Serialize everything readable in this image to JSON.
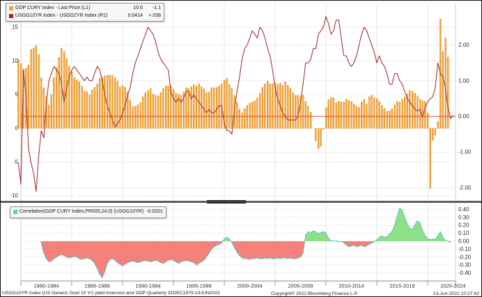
{
  "legend_top": {
    "series1": {
      "swatch_color": "#F2A138",
      "label": "GDP CURY Index - Last Price (L1)",
      "value": "10.6",
      "change": "-1.1"
    },
    "series2": {
      "swatch_color": "#9E2B33",
      "label": "USGG10YR Index - USGG2YR Index (R1)",
      "value": "0.0414",
      "change": "+.038"
    }
  },
  "legend_bottom": {
    "swatch_color": "#3FD9D4",
    "label": "Correlation(GDP CURY Index,PR005,24,0) (USGG10YR)",
    "value": "-0.0201"
  },
  "footer": {
    "left": "USGG10YR Index (US Generic Govt 10 Yr) yield inversion and GDP   Quarterly 31DEC1979-13JUN2022",
    "copyright": "Copyright© 2022 Bloomberg Finance L.P.",
    "timestamp": "13-Jun-2022 10:27:42"
  },
  "x_axis": {
    "labels": [
      "1980-1984",
      "1985-1989",
      "1990-1994",
      "1995-1999",
      "2000-2004",
      "2005-2009",
      "2010-2014",
      "2015-2019",
      "2020-2024"
    ]
  },
  "chart_data": [
    {
      "type": "bar",
      "title": "GDP (bars, L1) vs 10yr-2yr Treasury spread (line, R1)",
      "x_start": 1979.75,
      "x_step": 0.25,
      "left_axis": {
        "label": "L1",
        "ticks": [
          15,
          10,
          5,
          0,
          -5,
          -10
        ],
        "range": [
          -10.6,
          18.5
        ]
      },
      "right_axis": {
        "label": "R1",
        "ticks": [
          2,
          1,
          0,
          -1,
          -2
        ],
        "range": [
          -2.33,
          2.81
        ],
        "zero_line_color": "#D24A2E"
      },
      "grid_years": [
        1985,
        1990,
        1995,
        2000,
        2005,
        2010,
        2015,
        2020
      ],
      "bar_series": {
        "name": "GDP CURY Index - Last Price",
        "axis": "L1",
        "color": "#F4A437",
        "edge": "#DD8D1E",
        "values": [
          10.2,
          9.6,
          8.8,
          8.9,
          9.4,
          11.7,
          11.9,
          12.3,
          11.0,
          7.5,
          6.0,
          4.8,
          3.5,
          5.0,
          7.5,
          9.0,
          10.5,
          11.9,
          11.4,
          10.3,
          9.2,
          8.4,
          7.5,
          7.2,
          6.9,
          6.3,
          5.5,
          5.4,
          5.0,
          5.7,
          6.1,
          6.6,
          7.4,
          7.6,
          7.8,
          7.9,
          7.9,
          7.9,
          7.5,
          7.0,
          6.2,
          6.4,
          6.1,
          5.4,
          4.2,
          3.2,
          3.3,
          3.5,
          3.8,
          4.7,
          5.3,
          5.6,
          5.9,
          5.1,
          4.9,
          4.8,
          5.3,
          5.9,
          6.3,
          6.3,
          6.4,
          5.8,
          5.2,
          5.1,
          4.9,
          5.4,
          6.0,
          5.9,
          6.2,
          6.5,
          6.3,
          6.6,
          6.2,
          5.8,
          5.3,
          5.4,
          6.0,
          6.0,
          6.1,
          6.3,
          6.6,
          7.1,
          7.4,
          6.5,
          5.9,
          4.9,
          3.8,
          2.8,
          2.3,
          2.9,
          3.4,
          3.7,
          3.9,
          4.1,
          4.5,
          5.2,
          6.1,
          6.6,
          7.0,
          6.6,
          6.6,
          6.8,
          6.5,
          6.7,
          6.4,
          6.9,
          6.4,
          5.9,
          5.3,
          4.9,
          4.9,
          4.7,
          4.9,
          4.0,
          3.3,
          2.4,
          0.0,
          -1.9,
          -3.0,
          -2.7,
          -0.2,
          3.1,
          4.2,
          4.6,
          4.5,
          3.8,
          4.0,
          3.9,
          3.9,
          4.3,
          4.1,
          4.0,
          3.6,
          3.3,
          3.1,
          3.9,
          4.3,
          3.6,
          4.7,
          4.9,
          4.5,
          4.4,
          4.0,
          3.4,
          2.9,
          2.5,
          2.6,
          2.9,
          3.5,
          4.0,
          3.9,
          4.3,
          4.7,
          5.1,
          5.6,
          5.5,
          5.2,
          4.8,
          4.3,
          4.1,
          4.0,
          2.3,
          -8.9,
          -1.8,
          -1.0,
          1.0,
          16.2,
          11.4,
          13.4,
          10.6
        ]
      },
      "line_series": {
        "name": "USGG10YR Index - USGG2YR Index",
        "axis": "R1",
        "color": "#A5323B",
        "values": [
          -1.3,
          -1.9,
          1.3,
          0.6,
          -0.9,
          -1.3,
          -1.6,
          -2.1,
          -1.1,
          -0.4,
          -0.6,
          0.4,
          1.0,
          1.2,
          1.4,
          1.3,
          1.2,
          0.9,
          0.4,
          0.8,
          1.1,
          1.3,
          1.4,
          1.3,
          1.2,
          1.1,
          1.0,
          1.1,
          1.0,
          1.0,
          1.2,
          1.4,
          1.3,
          1.0,
          0.6,
          0.3,
          0.1,
          -0.1,
          -0.3,
          -0.2,
          -0.1,
          0.1,
          0.3,
          0.6,
          0.8,
          1.2,
          1.5,
          1.7,
          1.9,
          2.1,
          2.3,
          2.5,
          2.4,
          2.3,
          2.1,
          1.8,
          1.6,
          1.5,
          1.4,
          1.3,
          0.7,
          0.5,
          0.4,
          0.5,
          0.4,
          0.5,
          0.7,
          0.7,
          0.5,
          0.6,
          0.5,
          0.4,
          0.3,
          0.2,
          0.1,
          0.2,
          0.1,
          0.1,
          0.2,
          0.3,
          0.3,
          -0.2,
          -0.4,
          -0.4,
          -0.5,
          0.2,
          0.7,
          1.1,
          1.6,
          1.9,
          2.0,
          2.2,
          2.4,
          2.3,
          2.2,
          2.5,
          2.4,
          2.2,
          1.9,
          1.7,
          1.3,
          0.8,
          0.5,
          0.3,
          0.1,
          0.0,
          -0.1,
          -0.1,
          -0.1,
          -0.1,
          0.0,
          0.4,
          0.9,
          1.5,
          1.5,
          1.6,
          1.9,
          1.9,
          2.3,
          2.4,
          2.5,
          2.8,
          2.6,
          2.3,
          2.4,
          2.7,
          2.7,
          2.2,
          1.7,
          1.7,
          1.5,
          1.4,
          1.5,
          1.7,
          2.0,
          2.3,
          2.5,
          2.4,
          2.2,
          2.0,
          1.8,
          1.5,
          1.7,
          1.5,
          1.4,
          1.2,
          0.9,
          0.9,
          1.2,
          1.2,
          1.0,
          0.9,
          0.7,
          0.5,
          0.4,
          0.3,
          0.2,
          0.15,
          0.2,
          -0.02,
          0.25,
          0.4,
          0.5,
          0.55,
          0.8,
          1.5,
          1.2,
          1.1,
          0.8,
          0.25,
          -0.06,
          0.04
        ]
      }
    },
    {
      "type": "area",
      "title": "Rolling correlation of GDP and 10yr yield",
      "x_start": 1982.0,
      "x_step": 0.25,
      "right_axis": {
        "ticks": [
          0.4,
          0.3,
          0.2,
          0.1,
          0,
          -0.1,
          -0.2,
          -0.3,
          -0.4
        ],
        "range": [
          -0.5,
          0.46
        ]
      },
      "grid_years": [
        1985,
        1990,
        1995,
        2000,
        2005,
        2010,
        2015,
        2020
      ],
      "series": {
        "name": "Correlation(GDP CURY Index,PR005,24,0) (USGG10YR)",
        "line_color": "#53BFC0",
        "pos_fill": "#8EE088",
        "neg_fill": "#F4827B",
        "values": [
          -0.02,
          -0.15,
          -0.22,
          -0.26,
          -0.25,
          -0.22,
          -0.2,
          -0.18,
          -0.17,
          -0.18,
          -0.2,
          -0.21,
          -0.2,
          -0.19,
          -0.2,
          -0.22,
          -0.23,
          -0.22,
          -0.21,
          -0.22,
          -0.24,
          -0.28,
          -0.34,
          -0.42,
          -0.46,
          -0.38,
          -0.28,
          -0.23,
          -0.22,
          -0.24,
          -0.27,
          -0.29,
          -0.31,
          -0.29,
          -0.27,
          -0.26,
          -0.25,
          -0.26,
          -0.27,
          -0.26,
          -0.25,
          -0.24,
          -0.25,
          -0.26,
          -0.25,
          -0.24,
          -0.25,
          -0.27,
          -0.28,
          -0.26,
          -0.24,
          -0.23,
          -0.24,
          -0.26,
          -0.28,
          -0.26,
          -0.25,
          -0.24,
          -0.25,
          -0.26,
          -0.27,
          -0.3,
          -0.28,
          -0.26,
          -0.24,
          -0.2,
          -0.15,
          -0.1,
          -0.07,
          -0.05,
          -0.04,
          -0.02,
          0.03,
          0.05,
          0.03,
          -0.02,
          -0.08,
          -0.14,
          -0.18,
          -0.21,
          -0.22,
          -0.22,
          -0.23,
          -0.22,
          -0.22,
          -0.21,
          -0.22,
          -0.22,
          -0.21,
          -0.22,
          -0.21,
          -0.22,
          -0.22,
          -0.21,
          -0.22,
          -0.21,
          -0.21,
          -0.22,
          -0.21,
          -0.22,
          -0.22,
          -0.21,
          -0.2,
          -0.15,
          0.08,
          0.12,
          0.11,
          0.13,
          0.12,
          0.1,
          0.11,
          0.12,
          0.1,
          0.04,
          0.01,
          0.0,
          0.01,
          -0.01,
          0.0,
          -0.02,
          -0.05,
          -0.07,
          -0.06,
          -0.05,
          -0.07,
          -0.06,
          -0.05,
          -0.07,
          -0.06,
          -0.04,
          -0.02,
          -0.01,
          0.02,
          0.05,
          0.07,
          0.05,
          0.06,
          0.09,
          0.13,
          0.2,
          0.32,
          0.42,
          0.39,
          0.3,
          0.22,
          0.16,
          0.15,
          0.21,
          0.26,
          0.23,
          0.14,
          0.07,
          0.03,
          0.02,
          0.03,
          0.02,
          0.07,
          0.12,
          0.05,
          0.01,
          0.0,
          -0.02
        ]
      }
    }
  ]
}
